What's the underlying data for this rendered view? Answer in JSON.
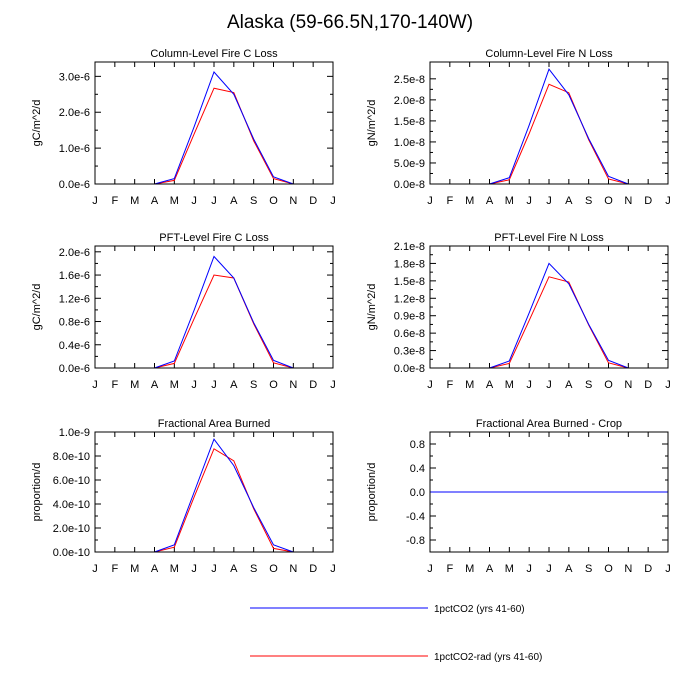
{
  "title": "Alaska (59-66.5N,170-140W)",
  "colors": {
    "series1": "#0000ff",
    "series2": "#ff0000",
    "frame": "#000000"
  },
  "legend": [
    {
      "label": "1pctCO2 (yrs 41-60)",
      "color": "#0000ff"
    },
    {
      "label": "1pctCO2-rad (yrs 41-60)",
      "color": "#ff0000"
    }
  ],
  "chart_data": [
    {
      "type": "line",
      "title": "Column-Level Fire C Loss",
      "ylabel": "gC/m^2/d",
      "x": [
        "J",
        "F",
        "M",
        "A",
        "M",
        "J",
        "J",
        "A",
        "S",
        "O",
        "N",
        "D",
        "J"
      ],
      "ylim": [
        0,
        3.4e-06
      ],
      "yticks": [
        0,
        1e-06,
        2e-06,
        3e-06
      ],
      "yticklabels": [
        "0.0e-6",
        "1.0e-6",
        "2.0e-6",
        "3.0e-6"
      ],
      "series": [
        {
          "name": "1pctCO2 (yrs 41-60)",
          "values": [
            0,
            0,
            0,
            0,
            1.5e-07,
            1.6e-06,
            3.12e-06,
            2.5e-06,
            1.25e-06,
            2e-07,
            0,
            0,
            0
          ]
        },
        {
          "name": "1pctCO2-rad (yrs 41-60)",
          "values": [
            0,
            0,
            0,
            0,
            1e-07,
            1.4e-06,
            2.67e-06,
            2.55e-06,
            1.2e-06,
            1.5e-07,
            0,
            0,
            0
          ]
        }
      ]
    },
    {
      "type": "line",
      "title": "Column-Level Fire N Loss",
      "ylabel": "gN/m^2/d",
      "x": [
        "J",
        "F",
        "M",
        "A",
        "M",
        "J",
        "J",
        "A",
        "S",
        "O",
        "N",
        "D",
        "J"
      ],
      "ylim": [
        0,
        2.9e-08
      ],
      "yticks": [
        0,
        5e-09,
        1e-08,
        1.5e-08,
        2e-08,
        2.5e-08
      ],
      "yticklabels": [
        "0.0e-8",
        "5.0e-9",
        "1.0e-8",
        "1.5e-8",
        "2.0e-8",
        "2.5e-8"
      ],
      "series": [
        {
          "name": "1pctCO2 (yrs 41-60)",
          "values": [
            0,
            0,
            0,
            0,
            1.5e-09,
            1.4e-08,
            2.73e-08,
            2.12e-08,
            1.08e-08,
            1.8e-09,
            0,
            0,
            0
          ]
        },
        {
          "name": "1pctCO2-rad (yrs 41-60)",
          "values": [
            0,
            0,
            0,
            0,
            1e-09,
            1.2e-08,
            2.37e-08,
            2.17e-08,
            1.05e-08,
            1.2e-09,
            0,
            0,
            0
          ]
        }
      ]
    },
    {
      "type": "line",
      "title": "PFT-Level Fire C Loss",
      "ylabel": "gC/m^2/d",
      "x": [
        "J",
        "F",
        "M",
        "A",
        "M",
        "J",
        "J",
        "A",
        "S",
        "O",
        "N",
        "D",
        "J"
      ],
      "ylim": [
        0,
        2.1e-06
      ],
      "yticks": [
        0,
        4e-07,
        8e-07,
        1.2e-06,
        1.6e-06,
        2e-06
      ],
      "yticklabels": [
        "0.0e-6",
        "0.4e-6",
        "0.8e-6",
        "1.2e-6",
        "1.6e-6",
        "2.0e-6"
      ],
      "series": [
        {
          "name": "1pctCO2 (yrs 41-60)",
          "values": [
            0,
            0,
            0,
            0,
            1.2e-07,
            1e-06,
            1.92e-06,
            1.55e-06,
            7.8e-07,
            1.3e-07,
            0,
            0,
            0
          ]
        },
        {
          "name": "1pctCO2-rad (yrs 41-60)",
          "values": [
            0,
            0,
            0,
            0,
            8e-08,
            8.5e-07,
            1.6e-06,
            1.55e-06,
            7.6e-07,
            9e-08,
            0,
            0,
            0
          ]
        }
      ]
    },
    {
      "type": "line",
      "title": "PFT-Level Fire N Loss",
      "ylabel": "gN/m^2/d",
      "x": [
        "J",
        "F",
        "M",
        "A",
        "M",
        "J",
        "J",
        "A",
        "S",
        "O",
        "N",
        "D",
        "J"
      ],
      "ylim": [
        0,
        2.1e-08
      ],
      "yticks": [
        0,
        3e-09,
        6e-09,
        9e-09,
        1.2e-08,
        1.5e-08,
        1.8e-08,
        2.1e-08
      ],
      "yticklabels": [
        "0.0e-8",
        "0.3e-8",
        "0.6e-8",
        "0.9e-8",
        "1.2e-8",
        "1.5e-8",
        "1.8e-8",
        "2.1e-8"
      ],
      "series": [
        {
          "name": "1pctCO2 (yrs 41-60)",
          "values": [
            0,
            0,
            0,
            0,
            1.2e-09,
            9.5e-09,
            1.8e-08,
            1.45e-08,
            7.5e-09,
            1.3e-09,
            0,
            0,
            0
          ]
        },
        {
          "name": "1pctCO2-rad (yrs 41-60)",
          "values": [
            0,
            0,
            0,
            0,
            8e-10,
            8.2e-09,
            1.57e-08,
            1.48e-08,
            7.4e-09,
            9e-10,
            0,
            0,
            0
          ]
        }
      ]
    },
    {
      "type": "line",
      "title": "Fractional Area Burned",
      "ylabel": "proportion/d",
      "x": [
        "J",
        "F",
        "M",
        "A",
        "M",
        "J",
        "J",
        "A",
        "S",
        "O",
        "N",
        "D",
        "J"
      ],
      "ylim": [
        0,
        1e-09
      ],
      "yticks": [
        0,
        2e-10,
        4e-10,
        6e-10,
        8e-10,
        1e-09
      ],
      "yticklabels": [
        "0.0e-10",
        "2.0e-10",
        "4.0e-10",
        "6.0e-10",
        "8.0e-10",
        "1.0e-9"
      ],
      "series": [
        {
          "name": "1pctCO2 (yrs 41-60)",
          "values": [
            0,
            0,
            0,
            0,
            6e-11,
            5e-10,
            9.4e-10,
            7.2e-10,
            3.7e-10,
            6e-11,
            0,
            0,
            0
          ]
        },
        {
          "name": "1pctCO2-rad (yrs 41-60)",
          "values": [
            0,
            0,
            0,
            0,
            4e-11,
            4.6e-10,
            8.6e-10,
            7.6e-10,
            3.6e-10,
            3e-11,
            0,
            0,
            0
          ]
        }
      ]
    },
    {
      "type": "line",
      "title": "Fractional Area Burned - Crop",
      "ylabel": "proportion/d",
      "x": [
        "J",
        "F",
        "M",
        "A",
        "M",
        "J",
        "J",
        "A",
        "S",
        "O",
        "N",
        "D",
        "J"
      ],
      "ylim": [
        -1,
        1
      ],
      "yticks": [
        -0.8,
        -0.4,
        0,
        0.4,
        0.8
      ],
      "yticklabels": [
        "-0.8",
        "-0.4",
        "0.0",
        "0.4",
        "0.8"
      ],
      "series": [
        {
          "name": "1pctCO2 (yrs 41-60)",
          "values": [
            0,
            0,
            0,
            0,
            0,
            0,
            0,
            0,
            0,
            0,
            0,
            0,
            0
          ]
        },
        {
          "name": "1pctCO2-rad (yrs 41-60)",
          "values": [
            0,
            0,
            0,
            0,
            0,
            0,
            0,
            0,
            0,
            0,
            0,
            0,
            0
          ]
        }
      ]
    }
  ]
}
